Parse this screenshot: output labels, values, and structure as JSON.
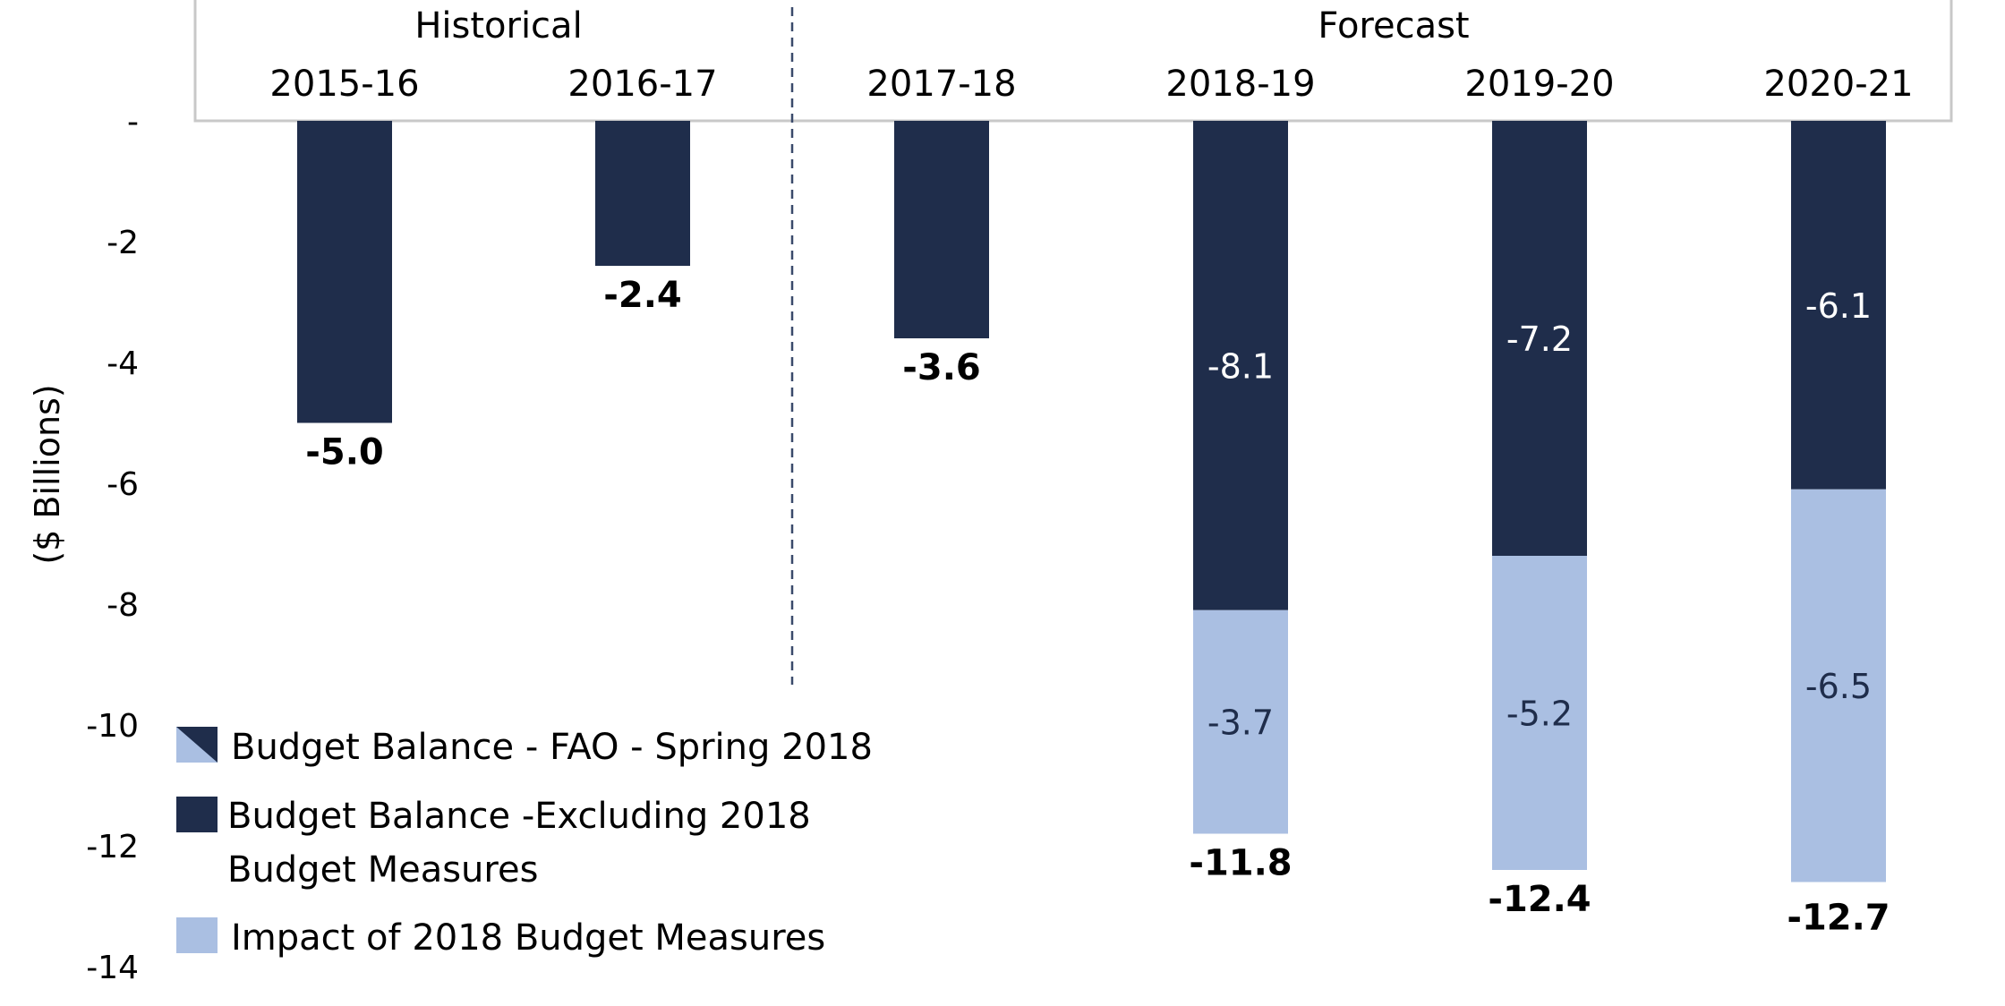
{
  "colors": {
    "dark": "#1f2d4b",
    "light": "#aabfe2",
    "frame": "#c8c8c8",
    "divider": "#3a4a6b"
  },
  "chart_data": {
    "type": "bar",
    "stacked": true,
    "ylabel": "($ Billions)",
    "ylim": [
      -14,
      0
    ],
    "yticks": [
      {
        "value": 0,
        "label": "-"
      },
      {
        "value": -2,
        "label": "-2"
      },
      {
        "value": -4,
        "label": "-4"
      },
      {
        "value": -6,
        "label": "-6"
      },
      {
        "value": -8,
        "label": "-8"
      },
      {
        "value": -10,
        "label": "-10"
      },
      {
        "value": -12,
        "label": "-12"
      },
      {
        "value": -14,
        "label": "-14"
      }
    ],
    "groups": [
      {
        "label": "Historical",
        "categories": [
          "2015-16",
          "2016-17"
        ]
      },
      {
        "label": "Forecast",
        "categories": [
          "2017-18",
          "2018-19",
          "2019-20",
          "2020-21"
        ]
      }
    ],
    "categories": [
      "2015-16",
      "2016-17",
      "2017-18",
      "2018-19",
      "2019-20",
      "2020-21"
    ],
    "series": [
      {
        "name": "Budget Balance -Excluding 2018 Budget Measures",
        "color": "#1f2d4b",
        "values": [
          -5.0,
          -2.4,
          -3.6,
          -8.1,
          -7.2,
          -6.1
        ],
        "labels": [
          null,
          null,
          null,
          "-8.1",
          "-7.2",
          "-6.1"
        ]
      },
      {
        "name": "Impact of 2018 Budget Measures",
        "color": "#aabfe2",
        "values": [
          0,
          0,
          0,
          -3.7,
          -5.2,
          -6.5
        ],
        "labels": [
          null,
          null,
          null,
          "-3.7",
          "-5.2",
          "-6.5"
        ]
      }
    ],
    "totals": [
      {
        "value": -5.0,
        "label": "-5.0"
      },
      {
        "value": -2.4,
        "label": "-2.4"
      },
      {
        "value": -3.6,
        "label": "-3.6"
      },
      {
        "value": -11.8,
        "label": "-11.8"
      },
      {
        "value": -12.4,
        "label": "-12.4"
      },
      {
        "value": -12.7,
        "label": "-12.7"
      }
    ],
    "legend": {
      "placement": "bottom-left",
      "items": [
        {
          "label": "Budget Balance - FAO - Spring 2018",
          "swatch": "split"
        },
        {
          "label": "Budget Balance -Excluding 2018",
          "label2": "Budget Measures",
          "swatch": "dark"
        },
        {
          "label": "Impact of 2018 Budget Measures",
          "swatch": "light"
        }
      ]
    }
  }
}
